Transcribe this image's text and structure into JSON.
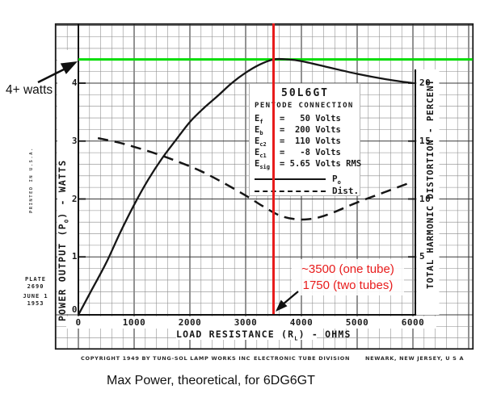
{
  "page": {
    "caption": "Max Power, theoretical, for 6DG6GT"
  },
  "annotations": {
    "green_line": {
      "watts": 4.41,
      "color": "#00dd00",
      "label": "4+ watts"
    },
    "red_line": {
      "ohms": 3500,
      "color": "#e81c1c",
      "label_line1": "~3500 (one tube)",
      "label_line2": "1750 (two tubes)"
    }
  },
  "plate": {
    "printed": "PRINTED IN U.S.A.",
    "plate_line1": "PLATE",
    "plate_line2": "2690",
    "date_line1": "JUNE 1",
    "date_line2": "1953"
  },
  "footer": {
    "copyright": "COPYRIGHT 1949 BY TUNG-SOL LAMP WORKS INC",
    "division": "ELECTRONIC TUBE DIVISION",
    "location": "NEWARK, NEW JERSEY, U S A"
  },
  "chart_data": {
    "type": "line",
    "title": "50L6GT",
    "subtitle": "PENTODE CONNECTION",
    "conditions": [
      {
        "sym": "E",
        "sub": "f",
        "val": "=   50 Volts"
      },
      {
        "sym": "E",
        "sub": "b",
        "val": "=  200 Volts"
      },
      {
        "sym": "E",
        "sub": "c2",
        "val": "=  110 Volts"
      },
      {
        "sym": "E",
        "sub": "c1",
        "val": "=   -8 Volts"
      },
      {
        "sym": "E",
        "sub": "sig",
        "val": "= 5.65 Volts RMS"
      }
    ],
    "xlabel": {
      "pre": "LOAD RESISTANCE (R",
      "sub": "L",
      "post": ") - OHMS"
    },
    "ylabel_left": {
      "pre": "POWER OUTPUT (P",
      "sub": "O",
      "post": ") - WATTS"
    },
    "ylabel_right": "TOTAL HARMONIC DISTORTION - PERCENT",
    "x_ticks": [
      "0",
      "1000",
      "2000",
      "3000",
      "4000",
      "5000",
      "6000"
    ],
    "x_tick_values": [
      0,
      1000,
      2000,
      3000,
      4000,
      5000,
      6000
    ],
    "y_left_ticks": [
      0,
      1,
      2,
      3,
      4
    ],
    "y_right_ticks": [
      5,
      10,
      15,
      20
    ],
    "xlim": [
      0,
      6000
    ],
    "ylim_left": [
      0,
      5
    ],
    "ylim_right": [
      0,
      25
    ],
    "grid": true,
    "legend_position": "inside-top-center",
    "legend": [
      {
        "pre": "P",
        "sub": "o",
        "style": "solid"
      },
      {
        "pre": "Dist.",
        "sub": "",
        "style": "dashed"
      }
    ],
    "series": [
      {
        "name": "Po",
        "axis": "watts",
        "style": "solid",
        "points": [
          [
            0,
            0
          ],
          [
            250,
            0.45
          ],
          [
            500,
            0.9
          ],
          [
            750,
            1.42
          ],
          [
            1000,
            1.9
          ],
          [
            1250,
            2.33
          ],
          [
            1500,
            2.7
          ],
          [
            1750,
            3.02
          ],
          [
            2000,
            3.33
          ],
          [
            2250,
            3.57
          ],
          [
            2500,
            3.78
          ],
          [
            2750,
            4.0
          ],
          [
            3000,
            4.18
          ],
          [
            3250,
            4.32
          ],
          [
            3500,
            4.41
          ],
          [
            3750,
            4.41
          ],
          [
            4000,
            4.38
          ],
          [
            4500,
            4.27
          ],
          [
            5000,
            4.16
          ],
          [
            5500,
            4.07
          ],
          [
            6000,
            4.0
          ]
        ]
      },
      {
        "name": "Dist.",
        "axis": "percent",
        "style": "dashed",
        "points": [
          [
            350,
            15.25
          ],
          [
            700,
            14.9
          ],
          [
            1000,
            14.5
          ],
          [
            1400,
            13.9
          ],
          [
            1800,
            13.2
          ],
          [
            2200,
            12.4
          ],
          [
            2600,
            11.4
          ],
          [
            3000,
            10.3
          ],
          [
            3300,
            9.4
          ],
          [
            3600,
            8.6
          ],
          [
            3900,
            8.25
          ],
          [
            4200,
            8.3
          ],
          [
            4500,
            8.7
          ],
          [
            5000,
            9.7
          ],
          [
            5500,
            10.6
          ],
          [
            6000,
            11.5
          ]
        ]
      }
    ]
  }
}
